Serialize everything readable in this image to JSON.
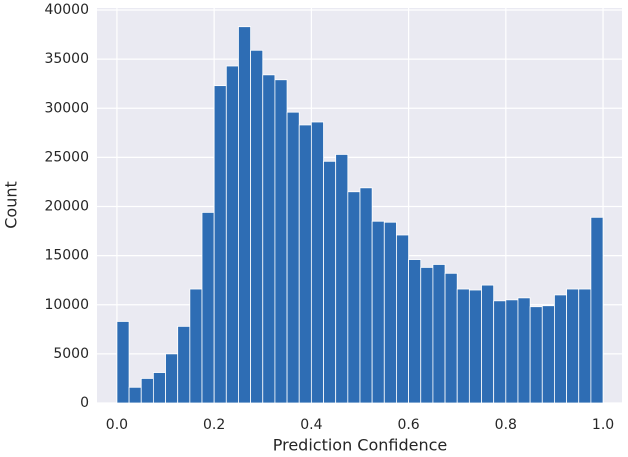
{
  "chart_data": {
    "type": "histogram",
    "x_label": "Prediction Confidence",
    "y_label": "Count",
    "bins": [
      0,
      0.025,
      0.05,
      0.075,
      0.1,
      0.125,
      0.15,
      0.175,
      0.2,
      0.225,
      0.25,
      0.275,
      0.3,
      0.325,
      0.35,
      0.375,
      0.4,
      0.425,
      0.45,
      0.475,
      0.5,
      0.525,
      0.55,
      0.575,
      0.6,
      0.625,
      0.65,
      0.675,
      0.7,
      0.725,
      0.75,
      0.775,
      0.8,
      0.825,
      0.85,
      0.875,
      0.9,
      0.925,
      0.95,
      0.975,
      1
    ],
    "values": [
      8300,
      1600,
      2500,
      3100,
      5000,
      7800,
      11600,
      19400,
      32300,
      34300,
      38300,
      35900,
      33400,
      32900,
      29600,
      28300,
      28600,
      24600,
      25300,
      21500,
      21900,
      18500,
      18400,
      17100,
      14600,
      13800,
      14100,
      13200,
      11600,
      11500,
      12000,
      10400,
      10500,
      10700,
      9800,
      9900,
      11000,
      11600,
      11600,
      18900
    ],
    "color": "#2e6db4",
    "xlim": [
      -0.041,
      1.039
    ],
    "ylim": [
      0,
      40000
    ],
    "xticks": [
      {
        "value": 0,
        "label": "0.0"
      },
      0.2,
      0.4,
      0.6,
      0.8,
      {
        "value": 1,
        "label": "1.0"
      }
    ],
    "yticks": [
      0,
      5000,
      10000,
      15000,
      20000,
      25000,
      30000,
      35000,
      40000
    ],
    "grid": true
  }
}
